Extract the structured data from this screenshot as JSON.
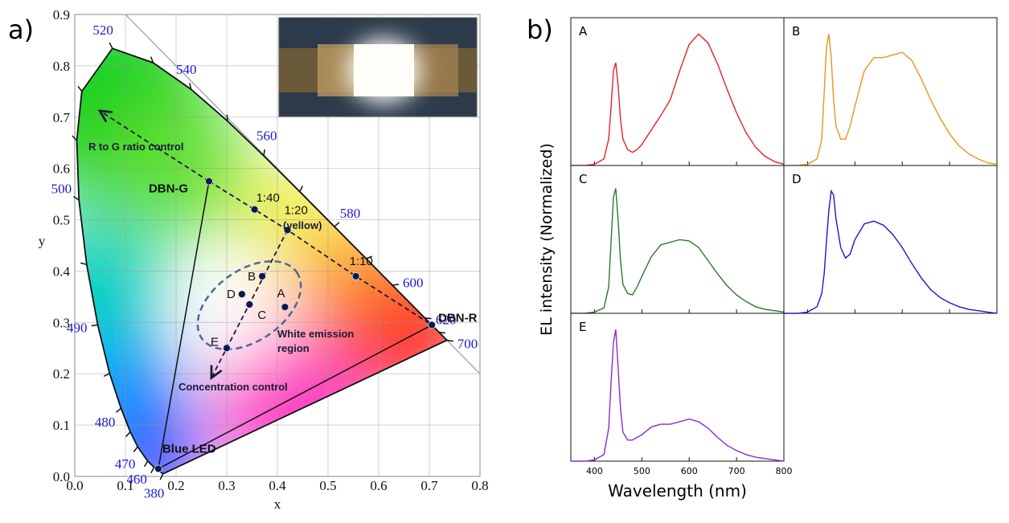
{
  "labels": {
    "a": "a)",
    "b": "b)"
  },
  "chart_data": [
    {
      "type": "scatter",
      "x_label": "x",
      "y_label": "y",
      "xlim": [
        0,
        0.8
      ],
      "ylim": [
        0,
        0.9
      ],
      "xticks": [
        {
          "value": 0,
          "label": "0.0"
        },
        0.1,
        0.2,
        0.3,
        0.4,
        0.5,
        0.6,
        0.7,
        0.8
      ],
      "yticks": [
        {
          "value": 0,
          "label": "0.0"
        },
        0.1,
        0.2,
        0.3,
        0.4,
        0.5,
        0.6,
        0.7,
        0.8,
        0.9
      ],
      "grid": true,
      "locus": {
        "labels": [
          380,
          null,
          460,
          470,
          null,
          480,
          null,
          490,
          null,
          500,
          null,
          null,
          520,
          null,
          540,
          null,
          560,
          null,
          580,
          null,
          600,
          620,
          null,
          700
        ],
        "x": [
          0.1741,
          0.1566,
          0.144,
          0.1241,
          0.1096,
          0.0913,
          0.0687,
          0.0454,
          0.0235,
          0.0082,
          0.0039,
          0.0139,
          0.0743,
          0.1547,
          0.2296,
          0.3016,
          0.3731,
          0.4441,
          0.5125,
          0.5752,
          0.627,
          0.6915,
          0.719,
          0.7347
        ],
        "y": [
          0.005,
          0.0177,
          0.0297,
          0.0578,
          0.0868,
          0.1327,
          0.2007,
          0.295,
          0.4127,
          0.5384,
          0.6548,
          0.7502,
          0.8338,
          0.8059,
          0.7543,
          0.6923,
          0.6245,
          0.5547,
          0.4866,
          0.4242,
          0.3725,
          0.3083,
          0.2809,
          0.2653
        ]
      },
      "points": {
        "labels": [
          "DBN-G",
          "1:40",
          "1:20",
          "1:10",
          "DBN-R",
          "Blue LED",
          "A",
          "B",
          "C",
          "D",
          "E"
        ],
        "x": [
          0.265,
          0.355,
          0.42,
          0.555,
          0.705,
          0.165,
          0.415,
          0.37,
          0.345,
          0.33,
          0.3
        ],
        "y": [
          0.575,
          0.52,
          0.48,
          0.39,
          0.295,
          0.015,
          0.33,
          0.39,
          0.335,
          0.355,
          0.25
        ]
      },
      "annotations": [
        "R to G ratio control",
        "(yellow)",
        "White emission",
        "region",
        "Concentration control"
      ]
    },
    {
      "type": "line",
      "x_label": "Wavelength (nm)",
      "y_label": "EL intensity (Normalized)",
      "xlim": [
        350,
        800
      ],
      "xticks": [
        400,
        500,
        600,
        700,
        800
      ],
      "ylim": [
        0,
        1.05
      ],
      "x": [
        350,
        380,
        400,
        420,
        430,
        435,
        440,
        445,
        450,
        455,
        460,
        470,
        480,
        490,
        500,
        520,
        540,
        560,
        580,
        600,
        620,
        640,
        660,
        680,
        700,
        720,
        740,
        760,
        780,
        800
      ],
      "series": [
        {
          "name": "A",
          "color": "#e8202a",
          "values": [
            0,
            0,
            0.01,
            0.05,
            0.2,
            0.45,
            0.72,
            0.78,
            0.6,
            0.35,
            0.2,
            0.12,
            0.1,
            0.12,
            0.16,
            0.27,
            0.38,
            0.5,
            0.72,
            0.92,
            1.0,
            0.93,
            0.77,
            0.58,
            0.4,
            0.25,
            0.14,
            0.07,
            0.03,
            0.01
          ]
        },
        {
          "name": "B",
          "color": "#f0921a",
          "values": [
            0,
            0,
            0.01,
            0.05,
            0.2,
            0.55,
            0.9,
            1.0,
            0.82,
            0.5,
            0.3,
            0.2,
            0.2,
            0.3,
            0.45,
            0.72,
            0.82,
            0.82,
            0.84,
            0.86,
            0.8,
            0.66,
            0.5,
            0.36,
            0.24,
            0.15,
            0.09,
            0.05,
            0.02,
            0.01
          ]
        },
        {
          "name": "C",
          "color": "#2a7a2a",
          "values": [
            0,
            0,
            0.01,
            0.04,
            0.2,
            0.55,
            0.88,
            0.95,
            0.7,
            0.4,
            0.22,
            0.15,
            0.14,
            0.2,
            0.28,
            0.43,
            0.52,
            0.54,
            0.56,
            0.55,
            0.5,
            0.4,
            0.3,
            0.21,
            0.14,
            0.09,
            0.05,
            0.03,
            0.02,
            0.01
          ]
        },
        {
          "name": "D",
          "color": "#1a1ad0",
          "values": [
            0,
            0,
            0.01,
            0.05,
            0.15,
            0.3,
            0.55,
            0.78,
            0.93,
            0.9,
            0.72,
            0.5,
            0.42,
            0.45,
            0.56,
            0.68,
            0.7,
            0.67,
            0.6,
            0.5,
            0.38,
            0.27,
            0.18,
            0.12,
            0.08,
            0.05,
            0.03,
            0.02,
            0.01,
            0
          ]
        },
        {
          "name": "E",
          "color": "#8a2bd0",
          "values": [
            0,
            0,
            0.01,
            0.05,
            0.25,
            0.6,
            0.9,
            1.0,
            0.7,
            0.4,
            0.22,
            0.16,
            0.16,
            0.18,
            0.2,
            0.26,
            0.28,
            0.28,
            0.3,
            0.32,
            0.3,
            0.25,
            0.18,
            0.12,
            0.08,
            0.05,
            0.03,
            0.02,
            0.01,
            0
          ]
        }
      ]
    }
  ]
}
